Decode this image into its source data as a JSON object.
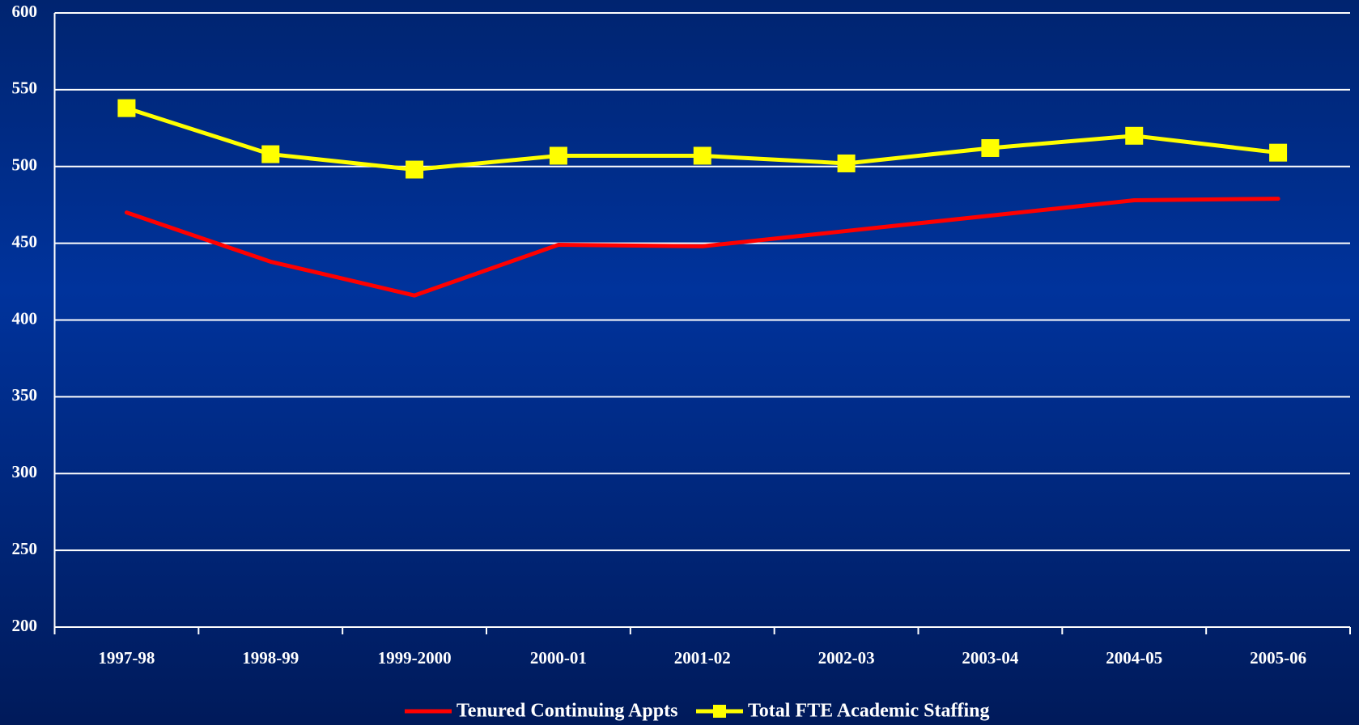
{
  "chart_data": {
    "type": "line",
    "categories": [
      "1997-98",
      "1998-99",
      "1999-2000",
      "2000-01",
      "2001-02",
      "2002-03",
      "2003-04",
      "2004-05",
      "2005-06"
    ],
    "series": [
      {
        "name": "Tenured Continuing Appts",
        "color": "#ff0000",
        "marker": "none",
        "values": [
          470,
          438,
          416,
          449,
          448,
          458,
          468,
          478,
          479
        ]
      },
      {
        "name": "Total FTE Academic Staffing",
        "color": "#ffff00",
        "marker": "square",
        "values": [
          538,
          508,
          498,
          507,
          507,
          502,
          512,
          520,
          509
        ]
      }
    ],
    "ylim": [
      200,
      600
    ],
    "yticks": [
      200,
      250,
      300,
      350,
      400,
      450,
      500,
      550,
      600
    ],
    "grid": true,
    "legend": "bottom"
  }
}
